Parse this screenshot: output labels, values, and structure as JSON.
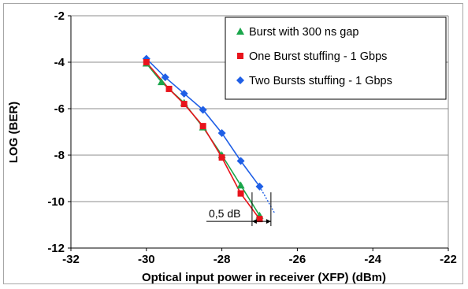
{
  "chart_data": {
    "type": "line",
    "title": "",
    "xlabel": "Optical input power in receiver (XFP) (dBm)",
    "ylabel": "LOG (BER)",
    "xlim": [
      -32,
      -22
    ],
    "ylim": [
      -12,
      -2
    ],
    "xticks": [
      -32,
      -30,
      -28,
      -26,
      -24,
      -22
    ],
    "yticks": [
      -2,
      -4,
      -6,
      -8,
      -10,
      -12
    ],
    "grid": "horizontal",
    "legend_position": "top-right",
    "series": [
      {
        "name": "Burst with 300 ns gap",
        "color": "#1aa64b",
        "marker": "triangle",
        "x": [
          -30.0,
          -29.6,
          -29.0,
          -28.5,
          -28.0,
          -27.5,
          -27.0
        ],
        "y": [
          -4.05,
          -4.85,
          -5.75,
          -6.8,
          -8.0,
          -9.3,
          -10.6
        ]
      },
      {
        "name": "One Burst stuffing - 1 Gbps",
        "color": "#e8141c",
        "marker": "square",
        "x": [
          -30.0,
          -29.4,
          -29.0,
          -28.5,
          -28.0,
          -27.5,
          -27.0
        ],
        "y": [
          -4.0,
          -5.15,
          -5.8,
          -6.75,
          -8.1,
          -9.65,
          -10.75
        ]
      },
      {
        "name": "Two Bursts stuffing - 1 Gbps",
        "color": "#1f5fe6",
        "marker": "diamond",
        "x": [
          -30.0,
          -29.5,
          -29.0,
          -28.5,
          -28.0,
          -27.5,
          -27.0
        ],
        "y": [
          -3.85,
          -4.65,
          -5.35,
          -6.05,
          -7.05,
          -8.25,
          -9.35
        ]
      }
    ],
    "extrapolation": {
      "color": "#1f5fe6",
      "x": [
        -27.0,
        -26.6
      ],
      "y": [
        -9.35,
        -10.5
      ]
    },
    "annotation": {
      "text": "0,5 dB",
      "x_from": -27.2,
      "x_to": -26.7,
      "y": -10.85,
      "ref_lines_x": [
        -27.2,
        -26.7
      ],
      "ref_lines_y_top": -9.6
    }
  }
}
